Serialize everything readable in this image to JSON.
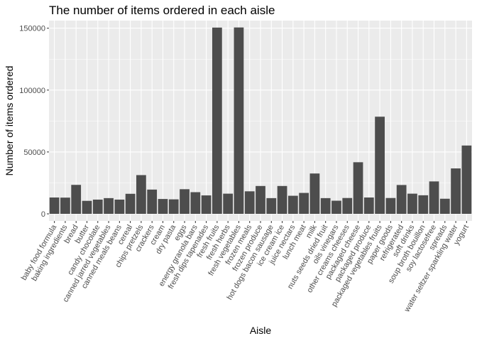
{
  "chart_data": {
    "type": "bar",
    "title": "The number of items ordered in each aisle",
    "xlabel": "Aisle",
    "ylabel": "Number of items ordered",
    "ylim": [
      0,
      155000
    ],
    "yticks": [
      0,
      50000,
      100000,
      150000
    ],
    "grid": true,
    "colors": {
      "panel": "#ebebeb",
      "grid_major": "#ffffff",
      "bar": "#4d4d4d",
      "tick_text": "#4d4d4d"
    },
    "categories": [
      "baby food formula",
      "baking ingredients",
      "bread",
      "butter",
      "candy chocolate",
      "canned jarred vegetables",
      "canned meals beans",
      "cereal",
      "chips pretzels",
      "crackers",
      "cream",
      "dry pasta",
      "eggs",
      "energy granola bars",
      "fresh dips tapenades",
      "fresh fruits",
      "fresh herbs",
      "fresh vegetables",
      "frozen meals",
      "frozen produce",
      "hot dogs bacon sausage",
      "ice cream ice",
      "juice nectars",
      "lunch meat",
      "milk",
      "nuts seeds dried fruit",
      "oils vinegars",
      "other creams cheeses",
      "packaged cheese",
      "packaged produce",
      "packaged vegetables fruits",
      "paper goods",
      "refrigerated",
      "soft drinks",
      "soup broth bouillon",
      "soy lactosefree",
      "spreads",
      "water seltzer sparkling water",
      "yogurt"
    ],
    "values": [
      13200,
      13100,
      23400,
      10500,
      11500,
      12700,
      11500,
      16200,
      31300,
      19600,
      12000,
      11700,
      19900,
      17500,
      14900,
      150500,
      16300,
      150600,
      18200,
      22500,
      12700,
      22500,
      14600,
      16900,
      32600,
      12700,
      10600,
      12800,
      41700,
      13200,
      78500,
      12800,
      23300,
      16300,
      15000,
      26200,
      12200,
      36700,
      55200
    ]
  }
}
